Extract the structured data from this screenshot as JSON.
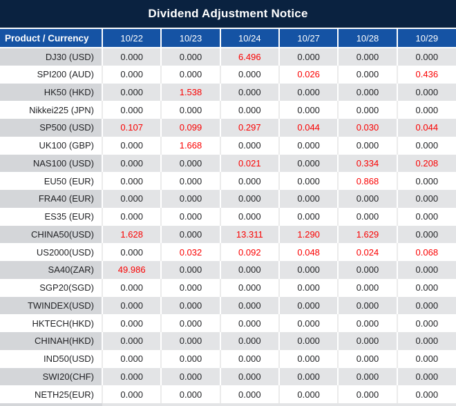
{
  "title_bar": {
    "title": "Dividend Adjustment Notice"
  },
  "table": {
    "product_header": "Product / Currency",
    "date_headers": [
      "10/22",
      "10/23",
      "10/24",
      "10/27",
      "10/28",
      "10/29"
    ],
    "rows": [
      {
        "product": "DJ30 (USD)",
        "values": [
          "0.000",
          "0.000",
          "6.496",
          "0.000",
          "0.000",
          "0.000"
        ]
      },
      {
        "product": "SPI200 (AUD)",
        "values": [
          "0.000",
          "0.000",
          "0.000",
          "0.026",
          "0.000",
          "0.436"
        ]
      },
      {
        "product": "HK50 (HKD)",
        "values": [
          "0.000",
          "1.538",
          "0.000",
          "0.000",
          "0.000",
          "0.000"
        ]
      },
      {
        "product": "Nikkei225 (JPN)",
        "values": [
          "0.000",
          "0.000",
          "0.000",
          "0.000",
          "0.000",
          "0.000"
        ]
      },
      {
        "product": "SP500 (USD)",
        "values": [
          "0.107",
          "0.099",
          "0.297",
          "0.044",
          "0.030",
          "0.044"
        ]
      },
      {
        "product": "UK100 (GBP)",
        "values": [
          "0.000",
          "1.668",
          "0.000",
          "0.000",
          "0.000",
          "0.000"
        ]
      },
      {
        "product": "NAS100 (USD)",
        "values": [
          "0.000",
          "0.000",
          "0.021",
          "0.000",
          "0.334",
          "0.208"
        ]
      },
      {
        "product": "EU50 (EUR)",
        "values": [
          "0.000",
          "0.000",
          "0.000",
          "0.000",
          "0.868",
          "0.000"
        ]
      },
      {
        "product": "FRA40 (EUR)",
        "values": [
          "0.000",
          "0.000",
          "0.000",
          "0.000",
          "0.000",
          "0.000"
        ]
      },
      {
        "product": "ES35 (EUR)",
        "values": [
          "0.000",
          "0.000",
          "0.000",
          "0.000",
          "0.000",
          "0.000"
        ]
      },
      {
        "product": "CHINA50(USD)",
        "values": [
          "1.628",
          "0.000",
          "13.311",
          "1.290",
          "1.629",
          "0.000"
        ]
      },
      {
        "product": "US2000(USD)",
        "values": [
          "0.000",
          "0.032",
          "0.092",
          "0.048",
          "0.024",
          "0.068"
        ]
      },
      {
        "product": "SA40(ZAR)",
        "values": [
          "49.986",
          "0.000",
          "0.000",
          "0.000",
          "0.000",
          "0.000"
        ]
      },
      {
        "product": "SGP20(SGD)",
        "values": [
          "0.000",
          "0.000",
          "0.000",
          "0.000",
          "0.000",
          "0.000"
        ]
      },
      {
        "product": "TWINDEX(USD)",
        "values": [
          "0.000",
          "0.000",
          "0.000",
          "0.000",
          "0.000",
          "0.000"
        ]
      },
      {
        "product": "HKTECH(HKD)",
        "values": [
          "0.000",
          "0.000",
          "0.000",
          "0.000",
          "0.000",
          "0.000"
        ]
      },
      {
        "product": "CHINAH(HKD)",
        "values": [
          "0.000",
          "0.000",
          "0.000",
          "0.000",
          "0.000",
          "0.000"
        ]
      },
      {
        "product": "IND50(USD)",
        "values": [
          "0.000",
          "0.000",
          "0.000",
          "0.000",
          "0.000",
          "0.000"
        ]
      },
      {
        "product": "SWI20(CHF)",
        "values": [
          "0.000",
          "0.000",
          "0.000",
          "0.000",
          "0.000",
          "0.000"
        ]
      },
      {
        "product": "NETH25(EUR)",
        "values": [
          "0.000",
          "0.000",
          "0.000",
          "0.000",
          "0.000",
          "0.000"
        ]
      }
    ]
  },
  "colors": {
    "title_bar_bg": "#0a2240",
    "header_bg": "#1553a4",
    "header_text": "#ffffff",
    "row_stripe_product_bg": "#d4d6d9",
    "row_stripe_bg": "#e3e4e6",
    "row_plain_bg": "#ffffff",
    "value_text": "#1f2023",
    "nonzero_value_text": "#fa0000"
  }
}
